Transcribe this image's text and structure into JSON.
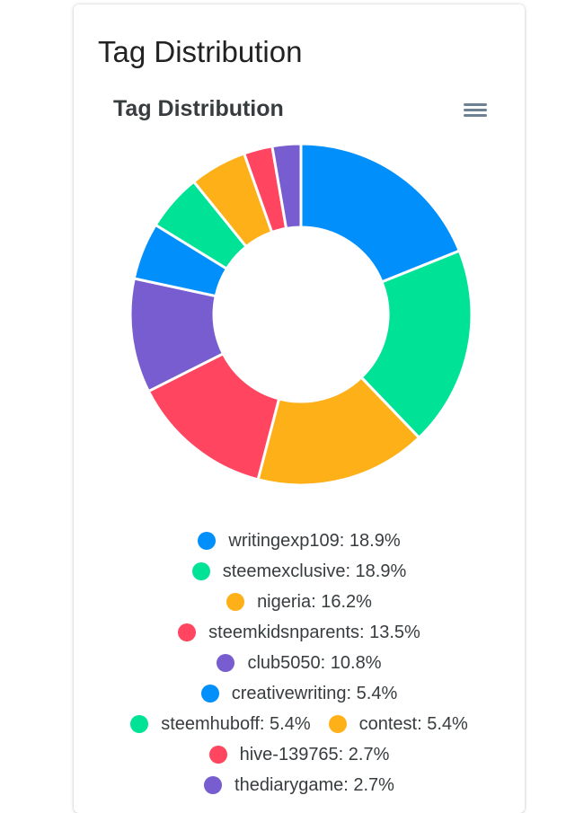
{
  "card": {
    "title": "Tag Distribution"
  },
  "toolbar": {
    "menu_icon": "hamburger-menu-icon"
  },
  "chart_data": {
    "type": "donut",
    "title": "Tag Distribution",
    "legend_position": "bottom",
    "slices": [
      {
        "label": "writingexp109",
        "value": 18.9,
        "color": "#008ffb"
      },
      {
        "label": "steemexclusive",
        "value": 18.9,
        "color": "#00e396"
      },
      {
        "label": "nigeria",
        "value": 16.2,
        "color": "#feb019"
      },
      {
        "label": "steemkidsnparents",
        "value": 13.5,
        "color": "#ff4560"
      },
      {
        "label": "club5050",
        "value": 10.8,
        "color": "#775dd0"
      },
      {
        "label": "creativewriting",
        "value": 5.4,
        "color": "#008ffb"
      },
      {
        "label": "steemhuboff",
        "value": 5.4,
        "color": "#00e396"
      },
      {
        "label": "contest",
        "value": 5.4,
        "color": "#feb019"
      },
      {
        "label": "hive-139765",
        "value": 2.7,
        "color": "#ff4560"
      },
      {
        "label": "thediarygame",
        "value": 2.7,
        "color": "#775dd0"
      }
    ],
    "legend_rows": [
      [
        0
      ],
      [
        1
      ],
      [
        2
      ],
      [
        3
      ],
      [
        4
      ],
      [
        5
      ],
      [
        6,
        7
      ],
      [
        8
      ],
      [
        9
      ]
    ]
  }
}
